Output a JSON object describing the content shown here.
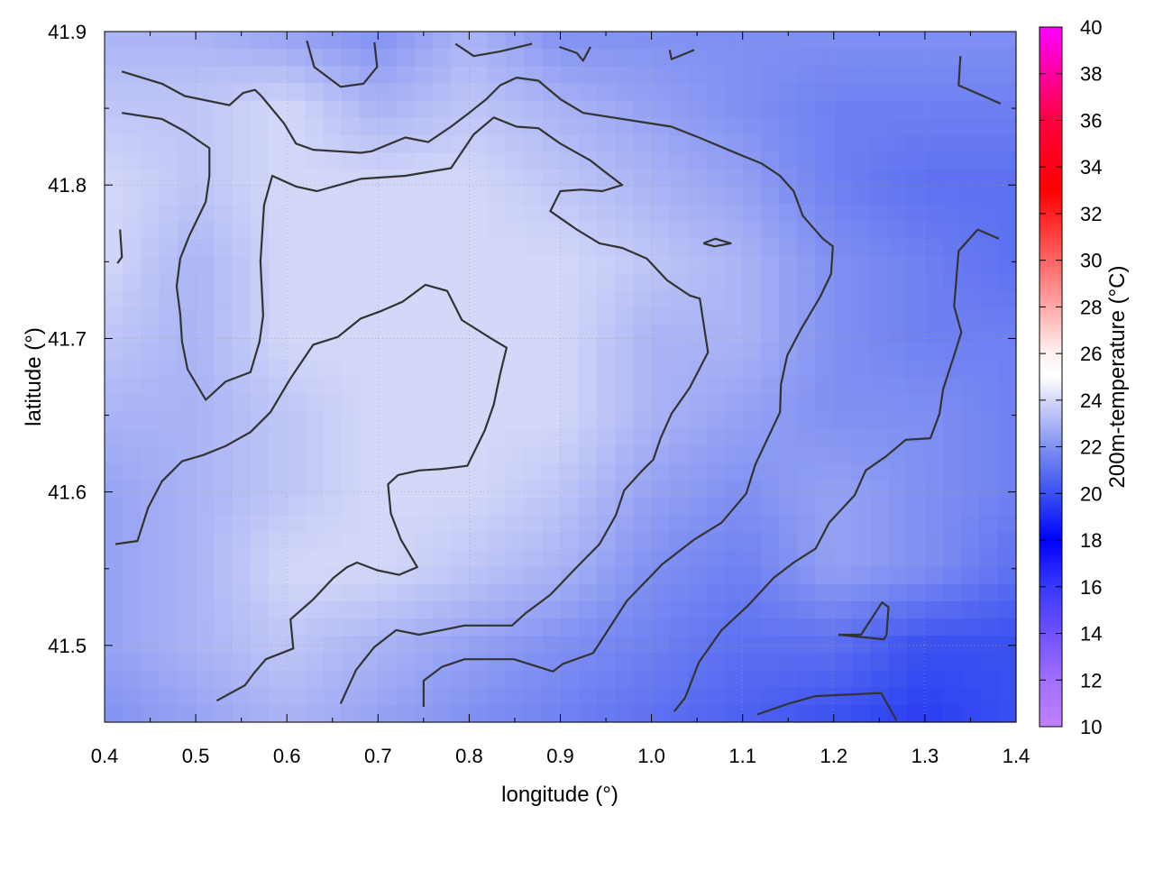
{
  "chart_data": {
    "type": "heatmap",
    "title": "",
    "xlabel": "longitude (°)",
    "ylabel": "latitude (°)",
    "colorbar_label": "200m-temperature (°C)",
    "xlim": [
      0.4,
      1.4
    ],
    "ylim": [
      41.45,
      41.9
    ],
    "clim": [
      10,
      40
    ],
    "grid": true,
    "x_ticks": [
      "0.4",
      "0.5",
      "0.6",
      "0.7",
      "0.8",
      "0.9",
      "1.0",
      "1.1",
      "1.2",
      "1.3",
      "1.4"
    ],
    "y_ticks": [
      "41.5",
      "41.6",
      "41.7",
      "41.8",
      "41.9"
    ],
    "colorbar_ticks": [
      "10",
      "12",
      "14",
      "16",
      "18",
      "20",
      "22",
      "24",
      "26",
      "28",
      "30",
      "32",
      "34",
      "36",
      "38",
      "40"
    ],
    "colormap": [
      {
        "v": 10,
        "c": "#c080ff"
      },
      {
        "v": 12,
        "c": "#a070ff"
      },
      {
        "v": 14,
        "c": "#7050ff"
      },
      {
        "v": 16,
        "c": "#3838ff"
      },
      {
        "v": 18,
        "c": "#0000ff"
      },
      {
        "v": 20,
        "c": "#3a50f0"
      },
      {
        "v": 22,
        "c": "#8090f2"
      },
      {
        "v": 24,
        "c": "#d4d8f8"
      },
      {
        "v": 25,
        "c": "#ffffff"
      },
      {
        "v": 26,
        "c": "#fff2f2"
      },
      {
        "v": 28,
        "c": "#ffa8a8"
      },
      {
        "v": 30,
        "c": "#ff6464"
      },
      {
        "v": 32,
        "c": "#ff2020"
      },
      {
        "v": 33,
        "c": "#ff0000"
      },
      {
        "v": 36,
        "c": "#ff0040"
      },
      {
        "v": 40,
        "c": "#ff00ff"
      }
    ],
    "grid_lon": [
      0.4,
      0.5,
      0.6,
      0.7,
      0.8,
      0.9,
      1.0,
      1.1,
      1.2,
      1.3,
      1.4
    ],
    "grid_lat": [
      41.9,
      41.85,
      41.8,
      41.75,
      41.7,
      41.65,
      41.6,
      41.55,
      41.5,
      41.45
    ],
    "values": [
      [
        23,
        23,
        22.5,
        22,
        23,
        22,
        22,
        22,
        22,
        22,
        22
      ],
      [
        23.5,
        23.5,
        24,
        23,
        23.5,
        23,
        22.5,
        22,
        21.5,
        21.5,
        21.5
      ],
      [
        24,
        23.5,
        24,
        24,
        24,
        23.5,
        23,
        22.5,
        21.5,
        21,
        21
      ],
      [
        24,
        23,
        24,
        24,
        24,
        24,
        23.5,
        23,
        22,
        21.5,
        21
      ],
      [
        23.5,
        23,
        24,
        24,
        24,
        24,
        23,
        23,
        22,
        21.5,
        21.5
      ],
      [
        23,
        23,
        23.5,
        24,
        24,
        24,
        23,
        22.5,
        22,
        22,
        21.5
      ],
      [
        22.5,
        23,
        23.5,
        24,
        24,
        23.5,
        22.5,
        22,
        22.5,
        22,
        21.5
      ],
      [
        22.5,
        23,
        24,
        24,
        23.5,
        23,
        22,
        21.5,
        22.5,
        22,
        21
      ],
      [
        22.5,
        23,
        23.5,
        23,
        22.5,
        22,
        21.5,
        21,
        21,
        20,
        20
      ],
      [
        22,
        22.5,
        23,
        22.5,
        22,
        21.5,
        21,
        20.5,
        20,
        19.5,
        20
      ]
    ],
    "contour_color": "#333333",
    "contours": [
      [
        [
          0.419,
          41.874
        ],
        [
          0.463,
          41.866
        ],
        [
          0.488,
          41.858
        ],
        [
          0.537,
          41.852
        ],
        [
          0.552,
          41.86
        ],
        [
          0.565,
          41.862
        ],
        [
          0.572,
          41.858
        ],
        [
          0.597,
          41.84
        ],
        [
          0.61,
          41.827
        ],
        [
          0.629,
          41.823
        ],
        [
          0.681,
          41.821
        ],
        [
          0.693,
          41.822
        ],
        [
          0.73,
          41.831
        ],
        [
          0.755,
          41.828
        ],
        [
          0.78,
          41.838
        ],
        [
          0.8,
          41.847
        ],
        [
          0.819,
          41.856
        ],
        [
          0.834,
          41.865
        ],
        [
          0.852,
          41.87
        ],
        [
          0.876,
          41.868
        ],
        [
          0.9,
          41.856
        ],
        [
          0.925,
          41.847
        ],
        [
          1.022,
          41.838
        ],
        [
          1.052,
          41.831
        ],
        [
          1.096,
          41.82
        ],
        [
          1.121,
          41.814
        ],
        [
          1.141,
          41.806
        ],
        [
          1.156,
          41.796
        ],
        [
          1.166,
          41.78
        ],
        [
          1.188,
          41.765
        ],
        [
          1.199,
          41.76
        ],
        [
          1.197,
          41.742
        ],
        [
          1.185,
          41.727
        ],
        [
          1.164,
          41.706
        ],
        [
          1.149,
          41.689
        ],
        [
          1.142,
          41.67
        ],
        [
          1.141,
          41.652
        ],
        [
          1.114,
          41.618
        ],
        [
          1.104,
          41.599
        ],
        [
          1.077,
          41.58
        ],
        [
          1.047,
          41.569
        ],
        [
          1.012,
          41.553
        ],
        [
          0.973,
          41.529
        ],
        [
          0.936,
          41.495
        ],
        [
          0.903,
          41.488
        ],
        [
          0.892,
          41.483
        ],
        [
          0.849,
          41.491
        ],
        [
          0.795,
          41.491
        ],
        [
          0.77,
          41.486
        ],
        [
          0.75,
          41.477
        ],
        [
          0.75,
          41.46
        ]
      ],
      [
        [
          0.419,
          41.847
        ],
        [
          0.463,
          41.843
        ],
        [
          0.488,
          41.835
        ],
        [
          0.515,
          41.824
        ],
        [
          0.515,
          41.806
        ],
        [
          0.511,
          41.789
        ],
        [
          0.493,
          41.767
        ],
        [
          0.483,
          41.752
        ],
        [
          0.479,
          41.734
        ],
        [
          0.483,
          41.716
        ],
        [
          0.485,
          41.698
        ],
        [
          0.491,
          41.68
        ],
        [
          0.511,
          41.66
        ],
        [
          0.533,
          41.672
        ],
        [
          0.56,
          41.678
        ],
        [
          0.57,
          41.698
        ],
        [
          0.574,
          41.715
        ],
        [
          0.571,
          41.75
        ],
        [
          0.575,
          41.787
        ],
        [
          0.584,
          41.806
        ],
        [
          0.61,
          41.799
        ],
        [
          0.633,
          41.796
        ],
        [
          0.681,
          41.804
        ],
        [
          0.73,
          41.806
        ],
        [
          0.78,
          41.811
        ],
        [
          0.805,
          41.833
        ],
        [
          0.827,
          41.844
        ],
        [
          0.852,
          41.838
        ],
        [
          0.876,
          41.837
        ],
        [
          0.9,
          41.827
        ],
        [
          0.933,
          41.816
        ],
        [
          0.948,
          41.809
        ],
        [
          0.968,
          41.8
        ],
        [
          0.946,
          41.796
        ],
        [
          0.923,
          41.797
        ],
        [
          0.9,
          41.796
        ],
        [
          0.889,
          41.783
        ],
        [
          0.918,
          41.771
        ],
        [
          0.943,
          41.762
        ],
        [
          0.968,
          41.759
        ],
        [
          0.995,
          41.752
        ],
        [
          1.017,
          41.738
        ],
        [
          1.042,
          41.728
        ],
        [
          1.053,
          41.726
        ],
        [
          1.062,
          41.691
        ],
        [
          1.042,
          41.668
        ],
        [
          1.022,
          41.651
        ],
        [
          1.01,
          41.635
        ],
        [
          1.002,
          41.621
        ],
        [
          0.99,
          41.614
        ],
        [
          0.97,
          41.601
        ],
        [
          0.961,
          41.585
        ],
        [
          0.943,
          41.566
        ],
        [
          0.918,
          41.551
        ],
        [
          0.889,
          41.533
        ],
        [
          0.862,
          41.521
        ],
        [
          0.847,
          41.513
        ],
        [
          0.795,
          41.513
        ],
        [
          0.77,
          41.51
        ],
        [
          0.745,
          41.507
        ],
        [
          0.72,
          41.51
        ],
        [
          0.696,
          41.499
        ],
        [
          0.676,
          41.484
        ],
        [
          0.659,
          41.462
        ]
      ],
      [
        [
          0.412,
          41.566
        ],
        [
          0.436,
          41.568
        ],
        [
          0.448,
          41.59
        ],
        [
          0.463,
          41.607
        ],
        [
          0.485,
          41.62
        ],
        [
          0.508,
          41.624
        ],
        [
          0.533,
          41.63
        ],
        [
          0.56,
          41.639
        ],
        [
          0.582,
          41.652
        ],
        [
          0.604,
          41.674
        ],
        [
          0.629,
          41.696
        ],
        [
          0.656,
          41.701
        ],
        [
          0.681,
          41.713
        ],
        [
          0.704,
          41.718
        ],
        [
          0.727,
          41.724
        ],
        [
          0.752,
          41.735
        ],
        [
          0.776,
          41.731
        ],
        [
          0.792,
          41.712
        ],
        [
          0.824,
          41.7
        ],
        [
          0.841,
          41.694
        ],
        [
          0.834,
          41.677
        ],
        [
          0.827,
          41.657
        ],
        [
          0.817,
          41.64
        ],
        [
          0.798,
          41.617
        ],
        [
          0.77,
          41.615
        ],
        [
          0.745,
          41.614
        ],
        [
          0.722,
          41.611
        ],
        [
          0.711,
          41.605
        ],
        [
          0.714,
          41.586
        ],
        [
          0.725,
          41.569
        ],
        [
          0.743,
          41.551
        ],
        [
          0.723,
          41.546
        ],
        [
          0.699,
          41.549
        ],
        [
          0.677,
          41.554
        ],
        [
          0.666,
          41.551
        ],
        [
          0.651,
          41.544
        ],
        [
          0.629,
          41.53
        ],
        [
          0.604,
          41.517
        ],
        [
          0.607,
          41.498
        ],
        [
          0.577,
          41.491
        ],
        [
          0.564,
          41.482
        ],
        [
          0.554,
          41.474
        ],
        [
          0.523,
          41.464
        ]
      ],
      [
        [
          1.025,
          41.457
        ],
        [
          1.037,
          41.466
        ],
        [
          1.052,
          41.489
        ],
        [
          1.077,
          41.51
        ],
        [
          1.106,
          41.526
        ],
        [
          1.134,
          41.544
        ],
        [
          1.156,
          41.554
        ],
        [
          1.18,
          41.563
        ],
        [
          1.195,
          41.58
        ],
        [
          1.223,
          41.598
        ],
        [
          1.235,
          41.614
        ],
        [
          1.257,
          41.623
        ],
        [
          1.279,
          41.634
        ],
        [
          1.306,
          41.635
        ],
        [
          1.316,
          41.651
        ],
        [
          1.32,
          41.667
        ],
        [
          1.332,
          41.689
        ],
        [
          1.34,
          41.704
        ],
        [
          1.332,
          41.721
        ],
        [
          1.337,
          41.757
        ],
        [
          1.358,
          41.771
        ],
        [
          1.381,
          41.765
        ]
      ],
      [
        [
          0.622,
          41.894
        ],
        [
          0.63,
          41.877
        ],
        [
          0.659,
          41.864
        ],
        [
          0.684,
          41.866
        ],
        [
          0.699,
          41.877
        ],
        [
          0.696,
          41.893
        ]
      ],
      [
        [
          0.785,
          41.892
        ],
        [
          0.805,
          41.884
        ],
        [
          0.834,
          41.887
        ],
        [
          0.869,
          41.892
        ]
      ],
      [
        [
          0.899,
          41.89
        ],
        [
          0.918,
          41.886
        ],
        [
          0.925,
          41.881
        ],
        [
          0.933,
          41.89
        ]
      ],
      [
        [
          1.02,
          41.888
        ],
        [
          1.022,
          41.882
        ],
        [
          1.047,
          41.888
        ]
      ],
      [
        [
          1.339,
          41.884
        ],
        [
          1.337,
          41.865
        ],
        [
          1.364,
          41.858
        ],
        [
          1.383,
          41.853
        ]
      ],
      [
        [
          1.057,
          41.762
        ],
        [
          1.069,
          41.76
        ],
        [
          1.087,
          41.762
        ],
        [
          1.07,
          41.765
        ],
        [
          1.057,
          41.762
        ]
      ],
      [
        [
          0.417,
          41.771
        ],
        [
          0.419,
          41.753
        ],
        [
          0.414,
          41.749
        ]
      ],
      [
        [
          1.205,
          41.507
        ],
        [
          1.23,
          41.507
        ],
        [
          1.253,
          41.528
        ],
        [
          1.26,
          41.525
        ],
        [
          1.258,
          41.507
        ],
        [
          1.255,
          41.504
        ],
        [
          1.205,
          41.507
        ]
      ],
      [
        [
          1.116,
          41.455
        ],
        [
          1.15,
          41.462
        ],
        [
          1.18,
          41.467
        ],
        [
          1.252,
          41.469
        ],
        [
          1.269,
          41.451
        ]
      ]
    ]
  }
}
